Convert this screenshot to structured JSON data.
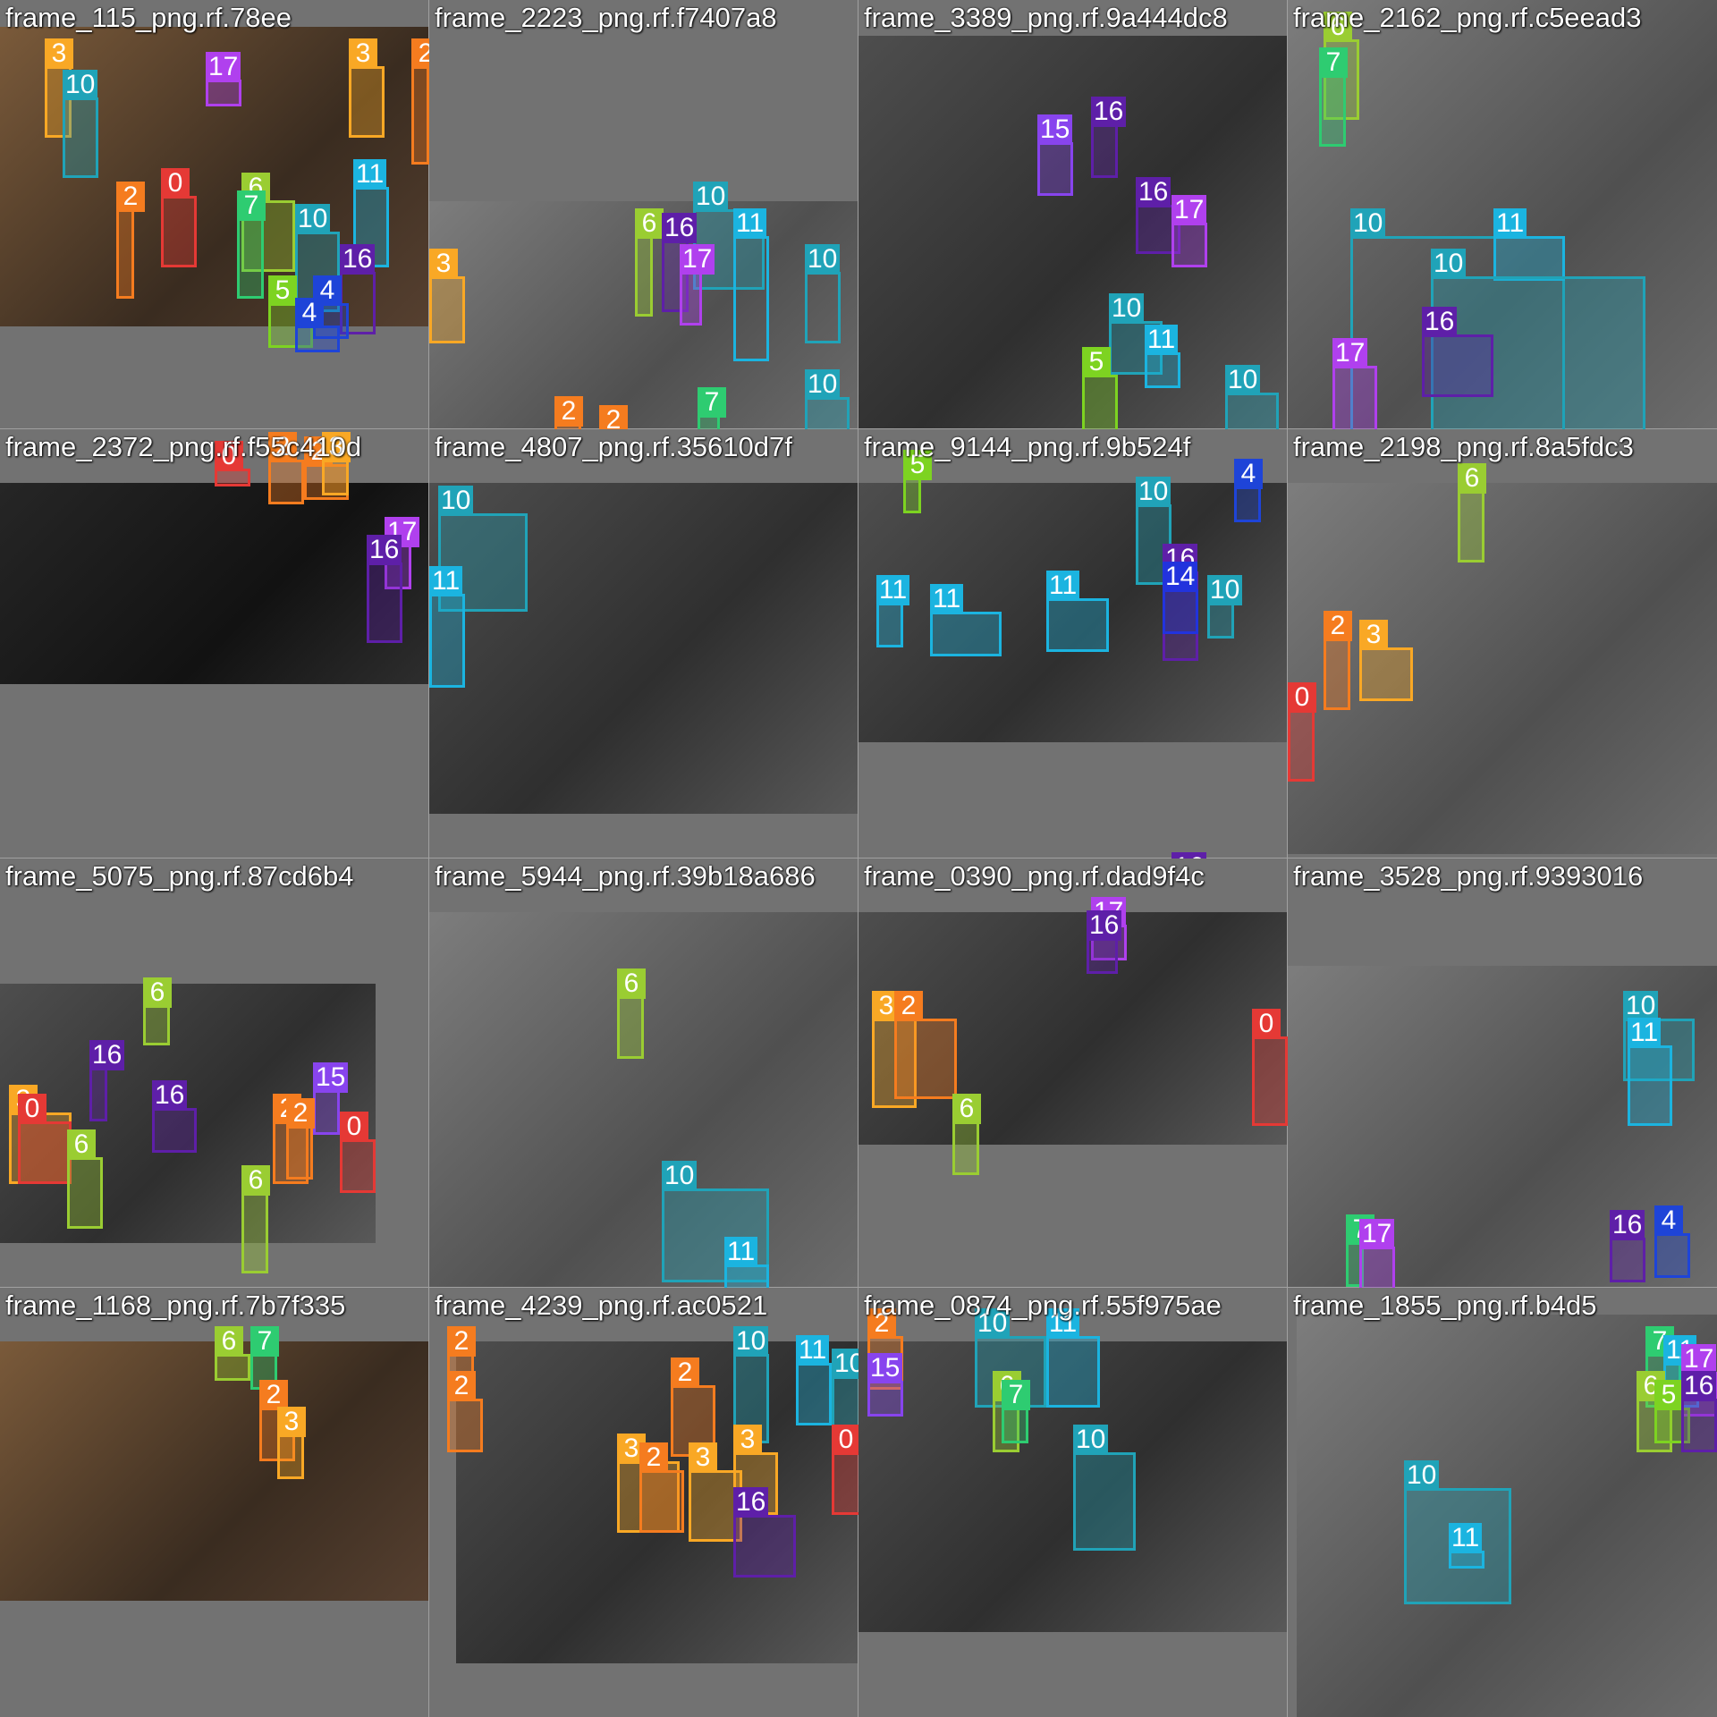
{
  "class_colors": {
    "0": "#e53935",
    "2": "#f57c1f",
    "3": "#f9a825",
    "4": "#1e44d8",
    "5": "#7dd321",
    "6": "#9acd32",
    "7": "#2ecc71",
    "10": "#20a3b8",
    "11": "#1bb4e0",
    "14": "#2233dd",
    "15": "#8844ee",
    "16": "#5e1fa8",
    "17": "#b040ee"
  },
  "tiles": [
    {
      "title": "frame_115_png.rf.78ee",
      "boxes": [
        {
          "c": "3"
        },
        {
          "c": "10"
        },
        {
          "c": "17"
        },
        {
          "c": "3"
        },
        {
          "c": "2"
        },
        {
          "c": "0"
        },
        {
          "c": "2"
        },
        {
          "c": "6"
        },
        {
          "c": "7"
        },
        {
          "c": "10"
        },
        {
          "c": "11"
        },
        {
          "c": "16"
        },
        {
          "c": "4"
        },
        {
          "c": "5"
        },
        {
          "c": "4"
        }
      ]
    },
    {
      "title": "frame_2223_png.rf.f7407a8",
      "boxes": [
        {
          "c": "10"
        },
        {
          "c": "11"
        },
        {
          "c": "6"
        },
        {
          "c": "16"
        },
        {
          "c": "17"
        },
        {
          "c": "10"
        },
        {
          "c": "3"
        },
        {
          "c": "2"
        },
        {
          "c": "7"
        },
        {
          "c": "2"
        },
        {
          "c": "10"
        }
      ]
    },
    {
      "title": "frame_3389_png.rf.9a444dc8",
      "boxes": [
        {
          "c": "15"
        },
        {
          "c": "16"
        },
        {
          "c": "16"
        },
        {
          "c": "17"
        },
        {
          "c": "10"
        },
        {
          "c": "11"
        },
        {
          "c": "5"
        },
        {
          "c": "10"
        }
      ]
    },
    {
      "title": "frame_2162_png.rf.c5eead3",
      "boxes": [
        {
          "c": "6"
        },
        {
          "c": "7"
        },
        {
          "c": "10"
        },
        {
          "c": "11"
        },
        {
          "c": "10"
        },
        {
          "c": "16"
        },
        {
          "c": "17"
        }
      ]
    },
    {
      "title": "frame_2372_png.rf.f55c410d",
      "boxes": [
        {
          "c": "0"
        },
        {
          "c": "2"
        },
        {
          "c": "2"
        },
        {
          "c": "3"
        },
        {
          "c": "17"
        },
        {
          "c": "16"
        }
      ]
    },
    {
      "title": "frame_4807_png.rf.35610d7f",
      "boxes": [
        {
          "c": "10"
        },
        {
          "c": "11"
        }
      ]
    },
    {
      "title": "frame_9144_png.rf.9b524f",
      "boxes": [
        {
          "c": "5"
        },
        {
          "c": "4"
        },
        {
          "c": "10"
        },
        {
          "c": "11"
        },
        {
          "c": "16"
        },
        {
          "c": "14"
        },
        {
          "c": "10"
        },
        {
          "c": "11"
        },
        {
          "c": "11"
        },
        {
          "c": "16"
        }
      ]
    },
    {
      "title": "frame_2198_png.rf.8a5fdc3",
      "boxes": [
        {
          "c": "6"
        },
        {
          "c": "2"
        },
        {
          "c": "3"
        },
        {
          "c": "0"
        }
      ]
    },
    {
      "title": "frame_5075_png.rf.87cd6b4",
      "boxes": [
        {
          "c": "16"
        },
        {
          "c": "6"
        },
        {
          "c": "16"
        },
        {
          "c": "15"
        },
        {
          "c": "2"
        },
        {
          "c": "2"
        },
        {
          "c": "3"
        },
        {
          "c": "0"
        },
        {
          "c": "0"
        },
        {
          "c": "6"
        },
        {
          "c": "6"
        }
      ]
    },
    {
      "title": "frame_5944_png.rf.39b18a686",
      "boxes": [
        {
          "c": "6"
        },
        {
          "c": "10"
        },
        {
          "c": "11"
        }
      ]
    },
    {
      "title": "frame_0390_png.rf.dad9f4c",
      "boxes": [
        {
          "c": "17"
        },
        {
          "c": "16"
        },
        {
          "c": "3"
        },
        {
          "c": "2"
        },
        {
          "c": "0"
        },
        {
          "c": "6"
        }
      ]
    },
    {
      "title": "frame_3528_png.rf.9393016",
      "boxes": [
        {
          "c": "10"
        },
        {
          "c": "11"
        },
        {
          "c": "7"
        },
        {
          "c": "17"
        },
        {
          "c": "16"
        },
        {
          "c": "4"
        }
      ]
    },
    {
      "title": "frame_1168_png.rf.7b7f335",
      "boxes": [
        {
          "c": "6"
        },
        {
          "c": "7"
        },
        {
          "c": "2"
        },
        {
          "c": "3"
        }
      ]
    },
    {
      "title": "frame_4239_png.rf.ac0521",
      "boxes": [
        {
          "c": "2"
        },
        {
          "c": "2"
        },
        {
          "c": "10"
        },
        {
          "c": "11"
        },
        {
          "c": "10"
        },
        {
          "c": "2"
        },
        {
          "c": "3"
        },
        {
          "c": "2"
        },
        {
          "c": "3"
        },
        {
          "c": "3"
        },
        {
          "c": "0"
        },
        {
          "c": "16"
        }
      ]
    },
    {
      "title": "frame_0874_png.rf.55f975ae",
      "boxes": [
        {
          "c": "2"
        },
        {
          "c": "15"
        },
        {
          "c": "10"
        },
        {
          "c": "11"
        },
        {
          "c": "6"
        },
        {
          "c": "7"
        },
        {
          "c": "10"
        }
      ]
    },
    {
      "title": "frame_1855_png.rf.b4d5",
      "boxes": [
        {
          "c": "7"
        },
        {
          "c": "11"
        },
        {
          "c": "17"
        },
        {
          "c": "6"
        },
        {
          "c": "5"
        },
        {
          "c": "16"
        },
        {
          "c": "10"
        },
        {
          "c": "11"
        }
      ]
    }
  ]
}
